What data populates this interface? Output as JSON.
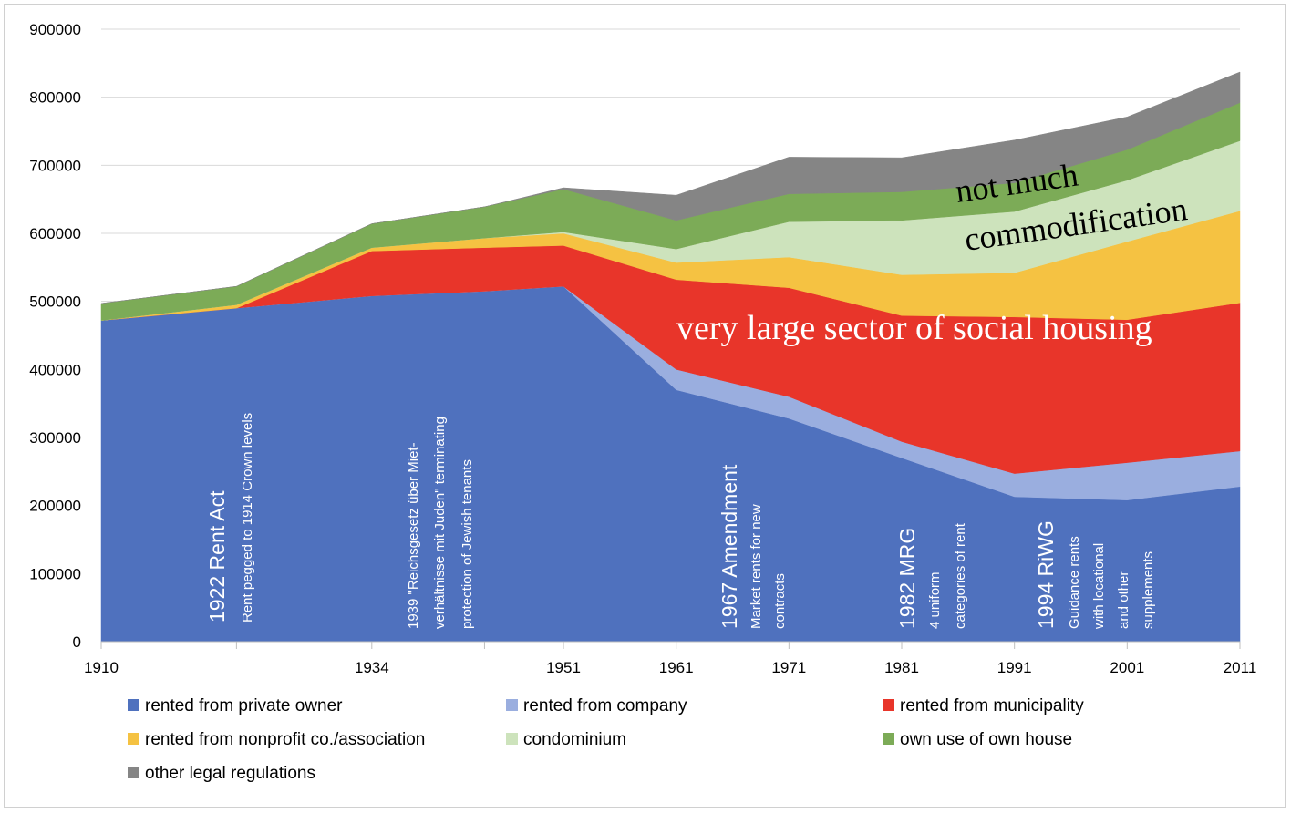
{
  "chart_data": {
    "type": "area",
    "stacked": true,
    "x": [
      1910,
      1922,
      1934,
      1944,
      1951,
      1961,
      1971,
      1981,
      1991,
      2001,
      2011
    ],
    "x_tick_labels": [
      "1910",
      "",
      "1934",
      "",
      "1951",
      "1961",
      "1971",
      "1981",
      "1991",
      "2001",
      "2011"
    ],
    "ylim": [
      0,
      900000
    ],
    "y_ticks": [
      0,
      100000,
      200000,
      300000,
      400000,
      500000,
      600000,
      700000,
      800000,
      900000
    ],
    "y_tick_labels": [
      "0",
      "100000",
      "200000",
      "300000",
      "400000",
      "500000",
      "600000",
      "700000",
      "800000",
      "900000"
    ],
    "grid": true,
    "legend_position": "bottom",
    "series": [
      {
        "name": "rented from private owner",
        "color": "#4f71be",
        "values": [
          472000,
          490000,
          508000,
          515000,
          522000,
          370000,
          328000,
          270000,
          213000,
          208000,
          228000
        ]
      },
      {
        "name": "rented from company",
        "color": "#9aaedf",
        "values": [
          0,
          0,
          0,
          0,
          0,
          30000,
          32000,
          24000,
          34000,
          55000,
          52000
        ]
      },
      {
        "name": "rented from municipality",
        "color": "#e8352a",
        "values": [
          0,
          0,
          66000,
          64000,
          60000,
          132000,
          160000,
          185000,
          230000,
          210000,
          218000
        ]
      },
      {
        "name": "rented from nonprofit co./association",
        "color": "#f5c242",
        "values": [
          0,
          5000,
          5000,
          14000,
          18000,
          25000,
          45000,
          60000,
          65000,
          115000,
          135000
        ]
      },
      {
        "name": "condominium",
        "color": "#cde3bc",
        "values": [
          0,
          0,
          0,
          0,
          2000,
          20000,
          52000,
          80000,
          90000,
          90000,
          103000
        ]
      },
      {
        "name": "own use of own house",
        "color": "#7cab57",
        "values": [
          25000,
          27000,
          35000,
          46000,
          63000,
          42000,
          41000,
          42000,
          42000,
          45000,
          56000
        ]
      },
      {
        "name": "other legal regulations",
        "color": "#858585",
        "values": [
          0,
          0,
          0,
          0,
          2000,
          37000,
          54000,
          50000,
          63000,
          48000,
          45000
        ]
      }
    ],
    "annotations": {
      "rent_1922": {
        "title": "1922 Rent Act",
        "lines": [
          "Rent pegged  to 1914 Crown levels"
        ]
      },
      "rent_1939": {
        "lines": [
          "1939 \"Reichsgesetz über Miet-",
          "verhältnisse mit Juden\" terminating",
          "protection of Jewish tenants"
        ]
      },
      "rent_1967": {
        "title": "1967 Amendment",
        "lines": [
          "Market rents for new",
          "contracts"
        ]
      },
      "mrg_1982": {
        "title": "1982 MRG",
        "lines": [
          "4 uniform",
          "categories of rent"
        ]
      },
      "riwg_1994": {
        "title": "1994 RiWG",
        "lines": [
          "Guidance rents",
          "with locational",
          "and other",
          "supplements"
        ]
      },
      "social_housing": "very large sector of social housing",
      "not_much": "not  much",
      "commodification": "commodification"
    }
  }
}
